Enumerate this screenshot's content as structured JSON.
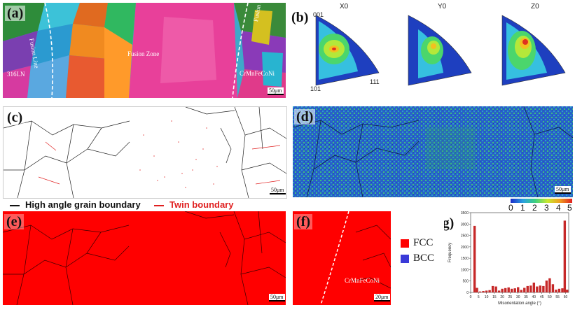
{
  "panels": {
    "a": {
      "label": "(a)",
      "left_material": "316LN",
      "right_material": "CrMnFeCoNi",
      "left_line": "Fusion Line",
      "right_line": "Fusion Line",
      "zone": "Fusion Zone",
      "scale": "50μm"
    },
    "b": {
      "label": "(b)",
      "titles": [
        "X0",
        "Y0",
        "Z0"
      ],
      "corner_top": "001",
      "corner_left": "101",
      "corner_right": "111"
    },
    "c": {
      "label": "(c)",
      "scale": "50μm"
    },
    "d": {
      "label": "(d)",
      "scale": "50μm",
      "colorbar_ticks": [
        "0",
        "1",
        "2",
        "3",
        "4",
        "5"
      ]
    },
    "e": {
      "label": "(e)",
      "scale": "50μm"
    },
    "f": {
      "label": "(f)",
      "material": "CrMnFeCoNi",
      "scale": "20μm"
    },
    "g": {
      "label": "(g)",
      "scale": ""
    }
  },
  "boundary_legend": {
    "high_angle": "High angle grain boundary",
    "twin": "Twin boundary",
    "high_angle_color": "#111111",
    "twin_color": "#e02020"
  },
  "phase_legend": {
    "fcc": "FCC",
    "bcc": "BCC",
    "fcc_color": "#ff0000",
    "bcc_color": "#3a3ad8"
  },
  "chart_data": {
    "type": "bar",
    "xlabel": "Misorientation angle (°)",
    "ylabel": "Frequency",
    "xlim": [
      0,
      62
    ],
    "ylim": [
      0,
      3500
    ],
    "xticks": [
      "0",
      "5",
      "10",
      "15",
      "20",
      "25",
      "30",
      "35",
      "40",
      "45",
      "50",
      "55",
      "60"
    ],
    "yticks": [
      "0",
      "500",
      "1000",
      "1500",
      "2000",
      "2500",
      "3000",
      "3500"
    ],
    "bar_color": "#c62828",
    "x": [
      2.5,
      4,
      6,
      8,
      10,
      12,
      14,
      16,
      18,
      20,
      22,
      24,
      26,
      28,
      30,
      32,
      34,
      36,
      38,
      40,
      42,
      44,
      46,
      48,
      50,
      52,
      54,
      56,
      58,
      59.5,
      61
    ],
    "values": [
      2920,
      200,
      40,
      60,
      80,
      100,
      280,
      260,
      80,
      160,
      190,
      220,
      160,
      180,
      230,
      110,
      200,
      280,
      300,
      430,
      260,
      300,
      280,
      520,
      620,
      360,
      120,
      160,
      180,
      3150,
      120
    ]
  }
}
